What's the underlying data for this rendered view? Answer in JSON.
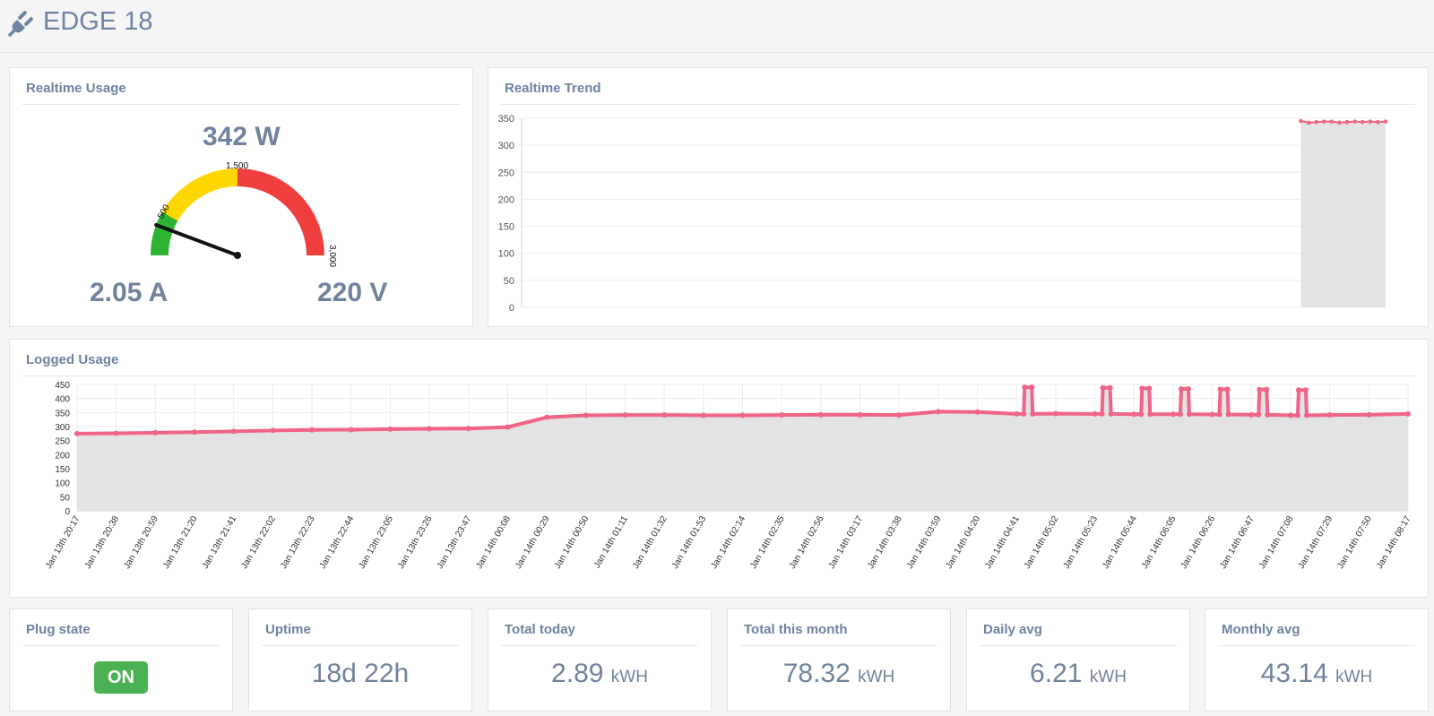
{
  "header": {
    "title": "EDGE 18",
    "icon": "plug-icon"
  },
  "realtime_usage": {
    "title": "Realtime Usage",
    "power": "342 W",
    "current": "2.05 A",
    "voltage": "220 V",
    "gauge": {
      "min": 0,
      "max": 3000,
      "value": 342,
      "bands": [
        {
          "from": 0,
          "to": 500,
          "color": "#2fb332"
        },
        {
          "from": 500,
          "to": 1500,
          "color": "#ffd700"
        },
        {
          "from": 1500,
          "to": 3000,
          "color": "#ef3e3e"
        }
      ],
      "labels": [
        "500",
        "1,500",
        "3,000"
      ]
    }
  },
  "realtime_trend": {
    "title": "Realtime Trend",
    "chart_data": {
      "type": "area",
      "yticks": [
        "0",
        "50",
        "100",
        "150",
        "200",
        "250",
        "300",
        "350"
      ],
      "ylim": [
        0,
        350
      ],
      "start_fraction": 0.902,
      "values": [
        345,
        342,
        343,
        344,
        344,
        342,
        343,
        344,
        343,
        344,
        343,
        344
      ],
      "line_color": "#f06487",
      "fill_color": "#e3e3e3"
    }
  },
  "logged_usage": {
    "title": "Logged Usage",
    "chart_data": {
      "type": "area",
      "yticks": [
        "0",
        "50",
        "100",
        "150",
        "200",
        "250",
        "300",
        "350",
        "400",
        "450"
      ],
      "ylim": [
        0,
        450
      ],
      "x": [
        "Jan 13th 20:17",
        "Jan 13th 20:38",
        "Jan 13th 20:59",
        "Jan 13th 21:20",
        "Jan 13th 21:41",
        "Jan 13th 22:02",
        "Jan 13th 22:23",
        "Jan 13th 22:44",
        "Jan 13th 23:05",
        "Jan 13th 23:26",
        "Jan 13th 23:47",
        "Jan 14th 00:08",
        "Jan 14th 00:29",
        "Jan 14th 00:50",
        "Jan 14th 01:11",
        "Jan 14th 01:32",
        "Jan 14th 01:53",
        "Jan 14th 02:14",
        "Jan 14th 02:35",
        "Jan 14th 02:56",
        "Jan 14th 03:17",
        "Jan 14th 03:38",
        "Jan 14th 03:59",
        "Jan 14th 04:20",
        "Jan 14th 04:41",
        "Jan 14th 05:02",
        "Jan 14th 05:23",
        "Jan 14th 05:44",
        "Jan 14th 06:05",
        "Jan 14th 06:26",
        "Jan 14th 06:47",
        "Jan 14th 07:08",
        "Jan 14th 07:29",
        "Jan 14th 07:50",
        "Jan 14th 08:17"
      ],
      "values": [
        275,
        276,
        278,
        280,
        283,
        286,
        288,
        289,
        291,
        292,
        293,
        298,
        333,
        340,
        341,
        341,
        340,
        340,
        341,
        342,
        342,
        341,
        353,
        352,
        345,
        346,
        345,
        344,
        344,
        343,
        342,
        340,
        341,
        342,
        345
      ],
      "spikes": [
        {
          "x": "Jan 14th 04:41",
          "y": 440
        },
        {
          "x": "Jan 14th 05:23",
          "y": 438
        },
        {
          "x": "Jan 14th 05:44",
          "y": 436
        },
        {
          "x": "Jan 14th 06:05",
          "y": 434
        },
        {
          "x": "Jan 14th 06:26",
          "y": 433
        },
        {
          "x": "Jan 14th 06:47",
          "y": 432
        },
        {
          "x": "Jan 14th 07:08",
          "y": 430
        }
      ],
      "line_color": "#f06487",
      "fill_color": "#e3e3e3"
    }
  },
  "stats": [
    {
      "title": "Plug state",
      "value": "ON"
    },
    {
      "title": "Uptime",
      "value": "18d 22h"
    },
    {
      "title": "Total today",
      "value": "2.89",
      "unit": "kWH"
    },
    {
      "title": "Total this month",
      "value": "78.32",
      "unit": "kWH"
    },
    {
      "title": "Daily avg",
      "value": "6.21",
      "unit": "kWH"
    },
    {
      "title": "Monthly avg",
      "value": "43.14",
      "unit": "kWH"
    }
  ]
}
